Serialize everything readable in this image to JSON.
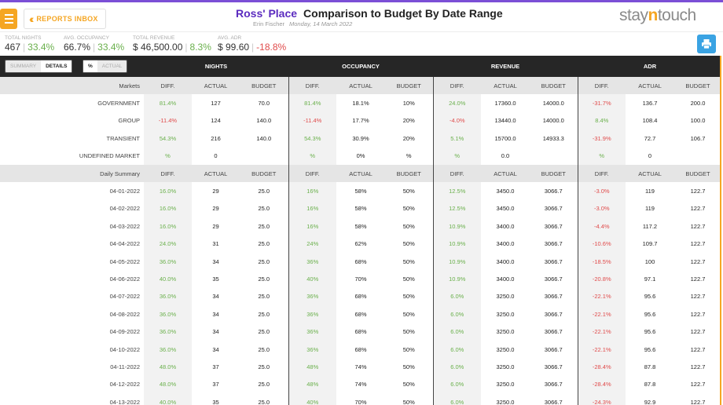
{
  "header": {
    "reports_inbox_label": "REPORTS INBOX",
    "hotel_name": "Ross' Place",
    "report_title": "Comparison to Budget By Date Range",
    "user_name": "Erin Fischer",
    "date": "Monday, 14 March 2022",
    "logo": {
      "pre": "stay",
      "n": "n",
      "post": "touch"
    }
  },
  "kpis": {
    "total_nights": {
      "label": "TOTAL NIGHTS",
      "value": "467",
      "diff": "33.4%"
    },
    "avg_occupancy": {
      "label": "AVG. OCCUPANCY",
      "value": "66.7%",
      "diff": "33.4%"
    },
    "total_revenue": {
      "label": "TOTAL REVENUE",
      "value": "$ 46,500.00",
      "diff": "8.3%"
    },
    "avg_adr": {
      "label": "AVG. ADR",
      "value": "$ 99.60",
      "diff": "-18.8%"
    }
  },
  "toggles": {
    "view": [
      "SUMMARY",
      "DETAILS"
    ],
    "mode": [
      "%",
      "ACTUAL"
    ]
  },
  "groups": [
    "NIGHTS",
    "OCCUPANCY",
    "REVENUE",
    "ADR"
  ],
  "colors": {
    "accent": "#f5a623",
    "brand": "#5b2bbf",
    "positive": "#6ab04c",
    "negative": "#e04b4b",
    "header_bg": "#262626"
  },
  "markets": {
    "title": "Markets",
    "columns": [
      "DIFF.",
      "ACTUAL",
      "BUDGET",
      "DIFF.",
      "ACTUAL",
      "BUDGET",
      "DIFF.",
      "ACTUAL",
      "BUDGET",
      "DIFF.",
      "ACTUAL",
      "BUDGET"
    ],
    "rows": [
      {
        "label": "GOVERNMENT",
        "cells": [
          "81.4%",
          "127",
          "70.0",
          "81.4%",
          "18.1%",
          "10%",
          "24.0%",
          "17360.0",
          "14000.0",
          "-31.7%",
          "136.7",
          "200.0"
        ]
      },
      {
        "label": "GROUP",
        "cells": [
          "-11.4%",
          "124",
          "140.0",
          "-11.4%",
          "17.7%",
          "20%",
          "-4.0%",
          "13440.0",
          "14000.0",
          "8.4%",
          "108.4",
          "100.0"
        ]
      },
      {
        "label": "TRANSIENT",
        "cells": [
          "54.3%",
          "216",
          "140.0",
          "54.3%",
          "30.9%",
          "20%",
          "5.1%",
          "15700.0",
          "14933.3",
          "-31.9%",
          "72.7",
          "106.7"
        ]
      },
      {
        "label": "UNDEFINED MARKET",
        "cells": [
          "%",
          "0",
          "",
          "%",
          "0%",
          "%",
          "%",
          "0.0",
          "",
          "%",
          "0",
          ""
        ]
      }
    ]
  },
  "daily": {
    "title": "Daily Summary",
    "columns": [
      "DIFF.",
      "ACTUAL",
      "BUDGET",
      "DIFF.",
      "ACTUAL",
      "BUDGET",
      "DIFF.",
      "ACTUAL",
      "BUDGET",
      "DIFF.",
      "ACTUAL",
      "BUDGET"
    ],
    "rows": [
      {
        "label": "04-01-2022",
        "cells": [
          "16.0%",
          "29",
          "25.0",
          "16%",
          "58%",
          "50%",
          "12.5%",
          "3450.0",
          "3066.7",
          "-3.0%",
          "119",
          "122.7"
        ]
      },
      {
        "label": "04-02-2022",
        "cells": [
          "16.0%",
          "29",
          "25.0",
          "16%",
          "58%",
          "50%",
          "12.5%",
          "3450.0",
          "3066.7",
          "-3.0%",
          "119",
          "122.7"
        ]
      },
      {
        "label": "04-03-2022",
        "cells": [
          "16.0%",
          "29",
          "25.0",
          "16%",
          "58%",
          "50%",
          "10.9%",
          "3400.0",
          "3066.7",
          "-4.4%",
          "117.2",
          "122.7"
        ]
      },
      {
        "label": "04-04-2022",
        "cells": [
          "24.0%",
          "31",
          "25.0",
          "24%",
          "62%",
          "50%",
          "10.9%",
          "3400.0",
          "3066.7",
          "-10.6%",
          "109.7",
          "122.7"
        ]
      },
      {
        "label": "04-05-2022",
        "cells": [
          "36.0%",
          "34",
          "25.0",
          "36%",
          "68%",
          "50%",
          "10.9%",
          "3400.0",
          "3066.7",
          "-18.5%",
          "100",
          "122.7"
        ]
      },
      {
        "label": "04-06-2022",
        "cells": [
          "40.0%",
          "35",
          "25.0",
          "40%",
          "70%",
          "50%",
          "10.9%",
          "3400.0",
          "3066.7",
          "-20.8%",
          "97.1",
          "122.7"
        ]
      },
      {
        "label": "04-07-2022",
        "cells": [
          "36.0%",
          "34",
          "25.0",
          "36%",
          "68%",
          "50%",
          "6.0%",
          "3250.0",
          "3066.7",
          "-22.1%",
          "95.6",
          "122.7"
        ]
      },
      {
        "label": "04-08-2022",
        "cells": [
          "36.0%",
          "34",
          "25.0",
          "36%",
          "68%",
          "50%",
          "6.0%",
          "3250.0",
          "3066.7",
          "-22.1%",
          "95.6",
          "122.7"
        ]
      },
      {
        "label": "04-09-2022",
        "cells": [
          "36.0%",
          "34",
          "25.0",
          "36%",
          "68%",
          "50%",
          "6.0%",
          "3250.0",
          "3066.7",
          "-22.1%",
          "95.6",
          "122.7"
        ]
      },
      {
        "label": "04-10-2022",
        "cells": [
          "36.0%",
          "34",
          "25.0",
          "36%",
          "68%",
          "50%",
          "6.0%",
          "3250.0",
          "3066.7",
          "-22.1%",
          "95.6",
          "122.7"
        ]
      },
      {
        "label": "04-11-2022",
        "cells": [
          "48.0%",
          "37",
          "25.0",
          "48%",
          "74%",
          "50%",
          "6.0%",
          "3250.0",
          "3066.7",
          "-28.4%",
          "87.8",
          "122.7"
        ]
      },
      {
        "label": "04-12-2022",
        "cells": [
          "48.0%",
          "37",
          "25.0",
          "48%",
          "74%",
          "50%",
          "6.0%",
          "3250.0",
          "3066.7",
          "-28.4%",
          "87.8",
          "122.7"
        ]
      },
      {
        "label": "04-13-2022",
        "cells": [
          "40.0%",
          "35",
          "25.0",
          "40%",
          "70%",
          "50%",
          "6.0%",
          "3250.0",
          "3066.7",
          "-24.3%",
          "92.9",
          "122.7"
        ]
      }
    ]
  }
}
